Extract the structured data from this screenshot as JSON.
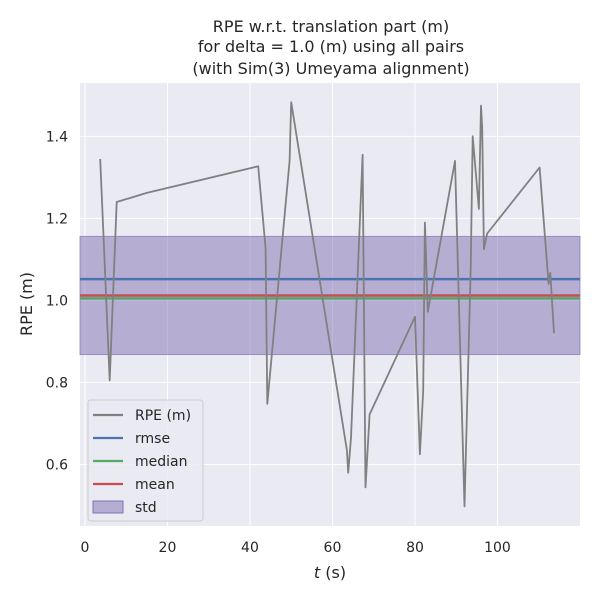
{
  "chart_data": {
    "type": "line",
    "title_lines": [
      "RPE w.r.t. translation part (m)",
      "for delta = 1.0 (m) using all pairs",
      "(with Sim(3) Umeyama alignment)"
    ],
    "xlabel": "t (s)",
    "xlabel_var": "t",
    "xlabel_unit": " (s)",
    "ylabel": "RPE (m)",
    "xlim": [
      -1.2,
      120
    ],
    "ylim": [
      0.45,
      1.53
    ],
    "xticks": [
      0,
      20,
      40,
      60,
      80,
      100
    ],
    "yticks": [
      0.6,
      0.8,
      1.0,
      1.2,
      1.4
    ],
    "ytick_labels": [
      "0.6",
      "0.8",
      "1.0",
      "1.2",
      "1.4"
    ],
    "grid": true,
    "background": "#eaeaf2",
    "legend_position": "lower-left",
    "series": [
      {
        "name": "RPE (m)",
        "color": "#808080",
        "x": [
          3.7,
          6.0,
          7.7,
          15.0,
          42.0,
          43.8,
          44.2,
          49.6,
          50.0,
          63.5,
          63.8,
          64.5,
          67.3,
          68.0,
          69.0,
          80.0,
          81.2,
          82.0,
          82.4,
          83.1,
          89.7,
          92.0,
          93.5,
          94.0,
          95.5,
          96.0,
          96.3,
          96.7,
          97.5,
          110.2,
          112.4,
          112.8,
          113.7
        ],
        "y": [
          1.345,
          0.805,
          1.24,
          1.262,
          1.327,
          1.127,
          0.748,
          1.34,
          1.483,
          0.635,
          0.58,
          0.665,
          1.355,
          0.544,
          0.722,
          0.96,
          0.625,
          0.78,
          1.19,
          0.972,
          1.34,
          0.498,
          1.077,
          1.4,
          1.223,
          1.475,
          1.42,
          1.125,
          1.163,
          1.324,
          1.04,
          1.067,
          0.92
        ]
      }
    ],
    "stats": [
      {
        "name": "rmse",
        "value": 1.052,
        "color": "#4c72b0"
      },
      {
        "name": "median",
        "value": 1.005,
        "color": "#55a868"
      },
      {
        "name": "mean",
        "value": 1.012,
        "color": "#c44e52"
      }
    ],
    "std": {
      "name": "std",
      "low": 0.868,
      "high": 1.156,
      "color": "#8172b2",
      "opacity": 0.5
    }
  }
}
